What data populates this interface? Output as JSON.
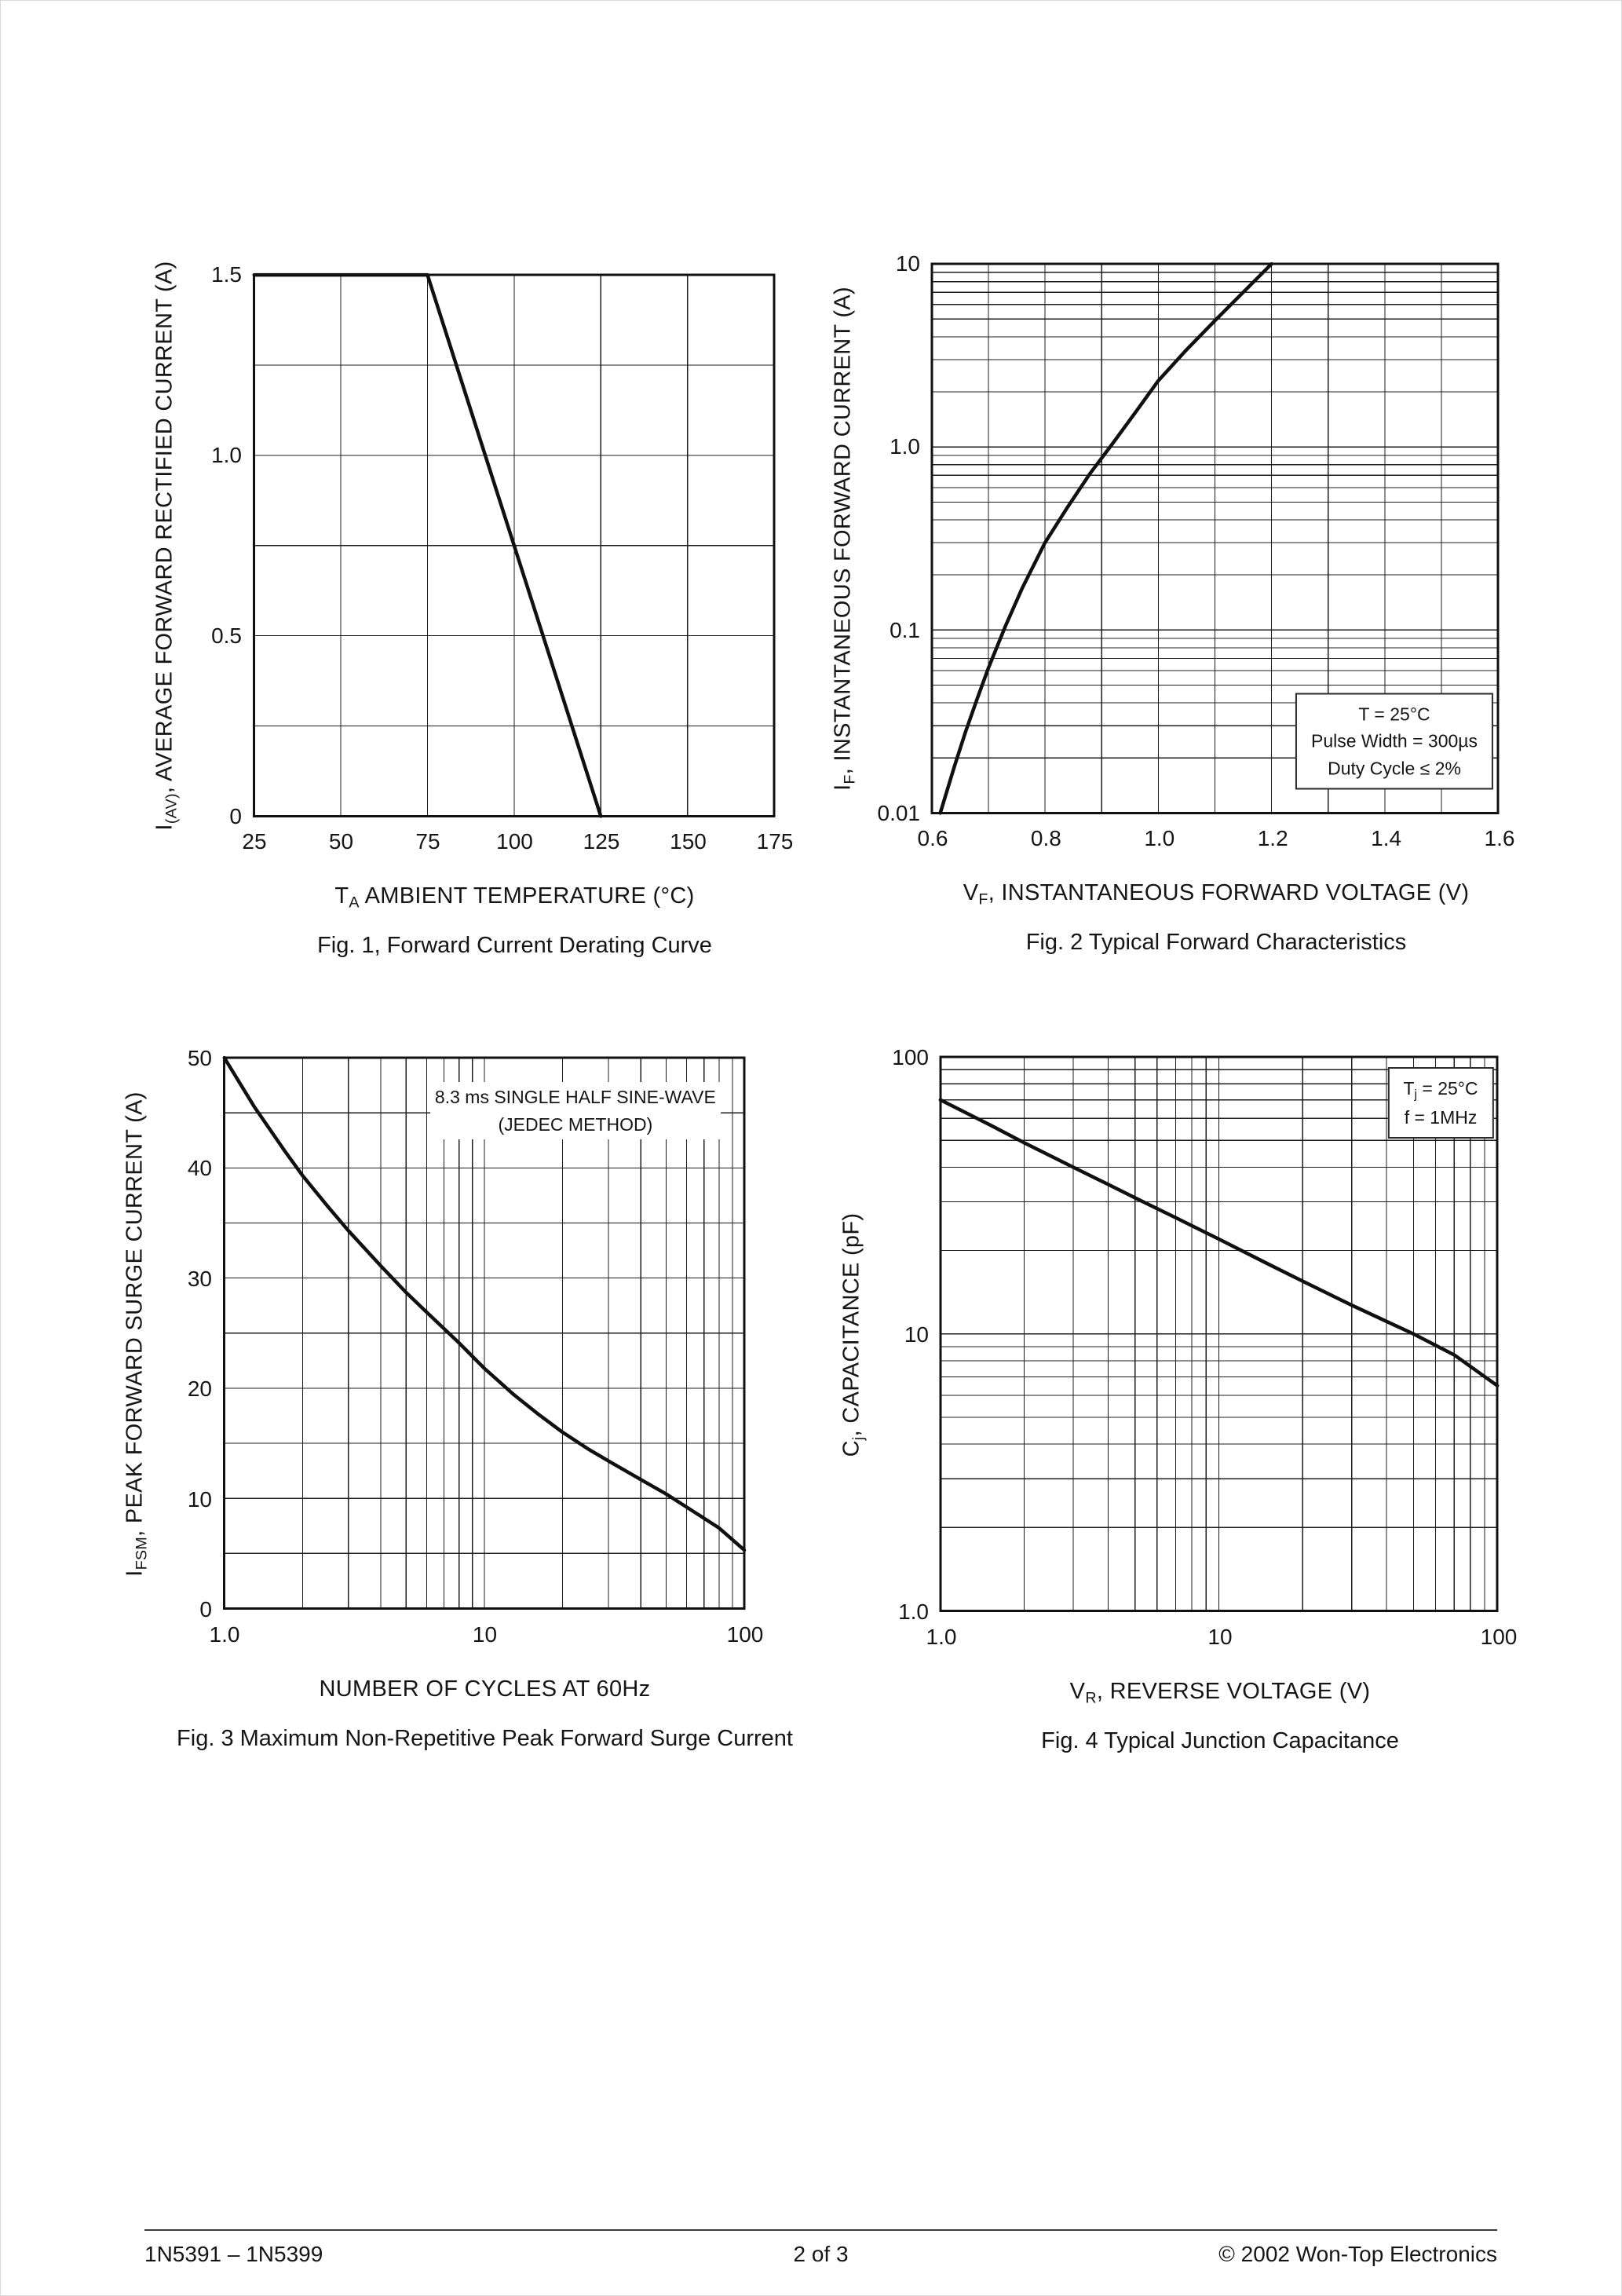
{
  "page": {
    "footer_left": "1N5391 – 1N5399",
    "footer_center": "2 of 3",
    "footer_right": "© 2002 Won-Top Electronics"
  },
  "colors": {
    "ink": "#111111",
    "grid": "#1c1c1c",
    "background": "#ffffff"
  },
  "chart_data": [
    {
      "id": "fig1",
      "type": "line",
      "figure": "Fig. 1",
      "caption": "Fig. 1, Forward Current Derating Curve",
      "x_axis": {
        "scale": "linear",
        "min": 25,
        "max": 175,
        "title": [
          {
            "t": "T"
          },
          {
            "t": "A",
            "s": 1
          },
          {
            "t": "  AMBIENT TEMPERATURE (°C)"
          }
        ],
        "ticks": [
          {
            "v": 25,
            "label": "25"
          },
          {
            "v": 50,
            "label": "50"
          },
          {
            "v": 75,
            "label": "75"
          },
          {
            "v": 100,
            "label": "100"
          },
          {
            "v": 125,
            "label": "125"
          },
          {
            "v": 150,
            "label": "150"
          },
          {
            "v": 175,
            "label": "175"
          }
        ],
        "grid_values": [
          25,
          50,
          75,
          100,
          125,
          150,
          175
        ]
      },
      "y_axis": {
        "scale": "linear",
        "min": 0,
        "max": 1.5,
        "title": [
          {
            "t": "I"
          },
          {
            "t": "(AV)",
            "s": 1
          },
          {
            "t": ", AVERAGE FORWARD RECTIFIED CURRENT (A)"
          }
        ],
        "ticks": [
          {
            "v": 0,
            "label": "0"
          },
          {
            "v": 0.5,
            "label": "0.5"
          },
          {
            "v": 1.0,
            "label": "1.0"
          },
          {
            "v": 1.5,
            "label": "1.5"
          }
        ],
        "grid_values": [
          0,
          0.25,
          0.5,
          0.75,
          1.0,
          1.25,
          1.5
        ]
      },
      "series": [
        {
          "name": "derating-curve",
          "points": [
            [
              25,
              1.5
            ],
            [
              75,
              1.5
            ],
            [
              125,
              0
            ]
          ]
        }
      ],
      "annotations": []
    },
    {
      "id": "fig2",
      "type": "line",
      "figure": "Fig. 2",
      "caption": "Fig. 2  Typical Forward Characteristics",
      "x_axis": {
        "scale": "linear",
        "min": 0.6,
        "max": 1.6,
        "title": [
          {
            "t": "V"
          },
          {
            "t": "F",
            "s": 1
          },
          {
            "t": ", INSTANTANEOUS FORWARD VOLTAGE (V)"
          }
        ],
        "ticks": [
          {
            "v": 0.6,
            "label": "0.6"
          },
          {
            "v": 0.8,
            "label": "0.8"
          },
          {
            "v": 1.0,
            "label": "1.0"
          },
          {
            "v": 1.2,
            "label": "1.2"
          },
          {
            "v": 1.4,
            "label": "1.4"
          },
          {
            "v": 1.6,
            "label": "1.6"
          }
        ],
        "grid_values": [
          0.6,
          0.7,
          0.8,
          0.9,
          1.0,
          1.1,
          1.2,
          1.3,
          1.4,
          1.5,
          1.6
        ]
      },
      "y_axis": {
        "scale": "log",
        "min": 0.01,
        "max": 10,
        "title": [
          {
            "t": "I"
          },
          {
            "t": "F",
            "s": 1
          },
          {
            "t": ", INSTANTANEOUS FORWARD CURRENT (A)"
          }
        ],
        "ticks": [
          {
            "v": 10,
            "label": "10"
          },
          {
            "v": 1,
            "label": "1.0"
          },
          {
            "v": 0.1,
            "label": "0.1"
          },
          {
            "v": 0.01,
            "label": "0.01"
          }
        ]
      },
      "series": [
        {
          "name": "forward-characteristic",
          "points": [
            [
              0.615,
              0.01
            ],
            [
              0.64,
              0.018
            ],
            [
              0.66,
              0.028
            ],
            [
              0.68,
              0.042
            ],
            [
              0.7,
              0.062
            ],
            [
              0.73,
              0.105
            ],
            [
              0.76,
              0.17
            ],
            [
              0.8,
              0.3
            ],
            [
              0.84,
              0.47
            ],
            [
              0.88,
              0.72
            ],
            [
              0.92,
              1.05
            ],
            [
              0.96,
              1.55
            ],
            [
              1.0,
              2.3
            ],
            [
              1.05,
              3.4
            ],
            [
              1.1,
              4.9
            ],
            [
              1.15,
              7.0
            ],
            [
              1.2,
              10.0
            ]
          ]
        }
      ],
      "annotations": [
        {
          "box": true,
          "fx": 0.989,
          "fy": 0.957,
          "anchor": "rb",
          "lines": [
            [
              {
                "t": "T = 25°C"
              }
            ],
            [
              {
                "t": "Pulse Width = 300µs"
              }
            ],
            [
              {
                "t": "Duty Cycle ≤ 2%"
              }
            ]
          ]
        }
      ]
    },
    {
      "id": "fig3",
      "type": "line",
      "figure": "Fig. 3",
      "caption": "Fig. 3  Maximum Non-Repetitive Peak Forward Surge Current",
      "x_axis": {
        "scale": "log",
        "min": 1,
        "max": 100,
        "title": [
          {
            "t": "NUMBER OF CYCLES AT 60Hz"
          }
        ],
        "ticks": [
          {
            "v": 1,
            "label": "1.0"
          },
          {
            "v": 10,
            "label": "10"
          },
          {
            "v": 100,
            "label": "100"
          }
        ]
      },
      "y_axis": {
        "scale": "linear",
        "min": 0,
        "max": 50,
        "title": [
          {
            "t": "I"
          },
          {
            "t": "FSM",
            "s": 1
          },
          {
            "t": ", PEAK FORWARD SURGE CURRENT (A)"
          }
        ],
        "ticks": [
          {
            "v": 0,
            "label": "0"
          },
          {
            "v": 10,
            "label": "10"
          },
          {
            "v": 20,
            "label": "20"
          },
          {
            "v": 30,
            "label": "30"
          },
          {
            "v": 40,
            "label": "40"
          },
          {
            "v": 50,
            "label": "50"
          }
        ],
        "grid_values": [
          0,
          5,
          10,
          15,
          20,
          25,
          30,
          35,
          40,
          45,
          50
        ]
      },
      "series": [
        {
          "name": "surge-current",
          "points": [
            [
              1,
              50
            ],
            [
              1.3,
              45.6
            ],
            [
              1.7,
              41.6
            ],
            [
              2,
              39.3
            ],
            [
              2.5,
              36.5
            ],
            [
              3,
              34.3
            ],
            [
              4,
              31.1
            ],
            [
              5,
              28.7
            ],
            [
              6,
              26.9
            ],
            [
              8,
              24.1
            ],
            [
              10,
              21.8
            ],
            [
              13,
              19.4
            ],
            [
              16,
              17.7
            ],
            [
              20,
              16.0
            ],
            [
              25,
              14.5
            ],
            [
              30,
              13.4
            ],
            [
              40,
              11.7
            ],
            [
              50,
              10.4
            ],
            [
              60,
              9.2
            ],
            [
              80,
              7.3
            ],
            [
              100,
              5.3
            ]
          ]
        }
      ],
      "annotations": [
        {
          "box": false,
          "fx": 0.674,
          "fy": 0.043,
          "anchor": "ct",
          "lines": [
            [
              {
                "t": "8.3 ms SINGLE HALF SINE-WAVE"
              }
            ],
            [
              {
                "t": "(JEDEC METHOD)"
              }
            ]
          ]
        }
      ]
    },
    {
      "id": "fig4",
      "type": "line",
      "figure": "Fig. 4",
      "caption": "Fig. 4  Typical Junction Capacitance",
      "x_axis": {
        "scale": "log",
        "min": 1,
        "max": 100,
        "title": [
          {
            "t": "V"
          },
          {
            "t": "R",
            "s": 1
          },
          {
            "t": ", REVERSE VOLTAGE (V)"
          }
        ],
        "ticks": [
          {
            "v": 1,
            "label": "1.0"
          },
          {
            "v": 10,
            "label": "10"
          },
          {
            "v": 100,
            "label": "100"
          }
        ]
      },
      "y_axis": {
        "scale": "log",
        "min": 1,
        "max": 100,
        "title": [
          {
            "t": "C"
          },
          {
            "t": "j",
            "s": 1
          },
          {
            "t": ", CAPACITANCE (pF)"
          }
        ],
        "ticks": [
          {
            "v": 100,
            "label": "100"
          },
          {
            "v": 10,
            "label": "10"
          },
          {
            "v": 1,
            "label": "1.0"
          }
        ]
      },
      "series": [
        {
          "name": "junction-capacitance",
          "points": [
            [
              1,
              70
            ],
            [
              1.5,
              57
            ],
            [
              2,
              49
            ],
            [
              3,
              40
            ],
            [
              4,
              34.7
            ],
            [
              5,
              31
            ],
            [
              7,
              26.3
            ],
            [
              10,
              22
            ],
            [
              15,
              17.9
            ],
            [
              20,
              15.5
            ],
            [
              30,
              12.7
            ],
            [
              40,
              11.1
            ],
            [
              50,
              10.0
            ],
            [
              70,
              8.4
            ],
            [
              100,
              6.5
            ]
          ]
        }
      ],
      "annotations": [
        {
          "box": true,
          "fx": 0.991,
          "fy": 0.017,
          "anchor": "rt",
          "lines": [
            [
              {
                "t": "T"
              },
              {
                "t": "j",
                "s": 1
              },
              {
                "t": " = 25°C"
              }
            ],
            [
              {
                "t": "f = 1MHz"
              }
            ]
          ]
        }
      ]
    }
  ]
}
